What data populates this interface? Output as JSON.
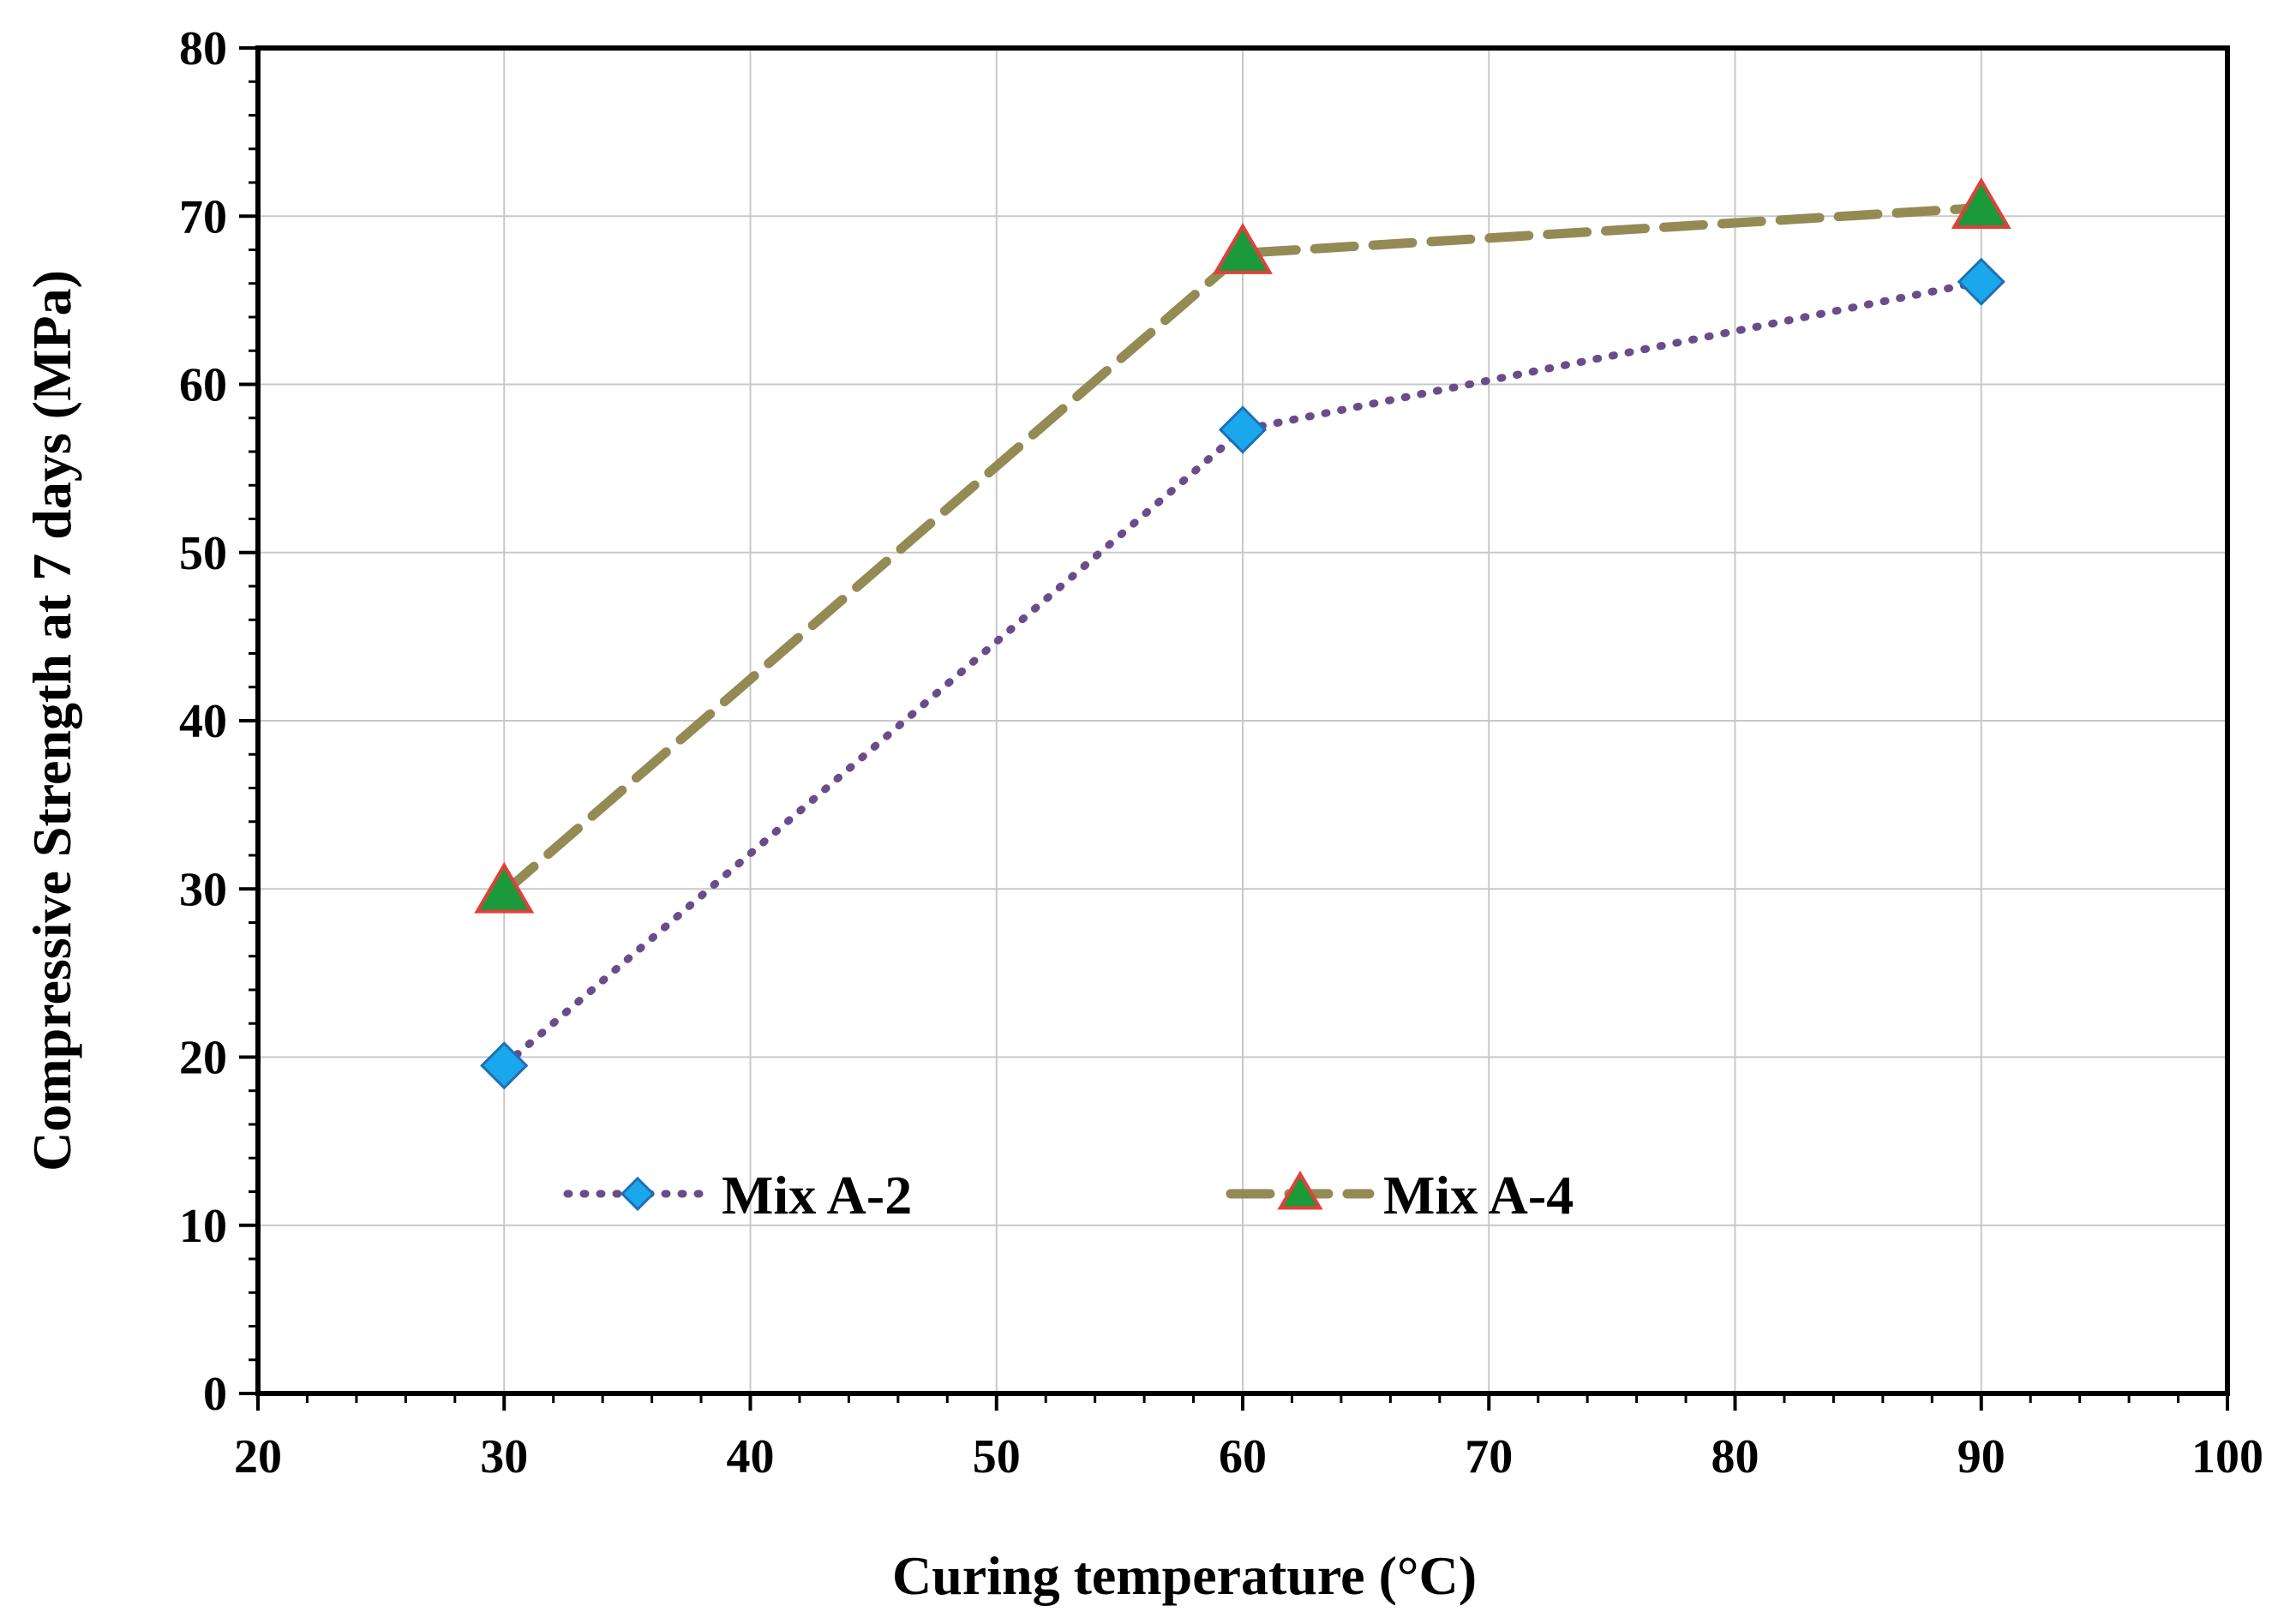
{
  "chart_data": {
    "type": "line",
    "title": "",
    "xlabel": "Curing temperature (°C)",
    "ylabel": "Compressive Strength at 7 days (MPa)",
    "xlim": [
      20,
      100
    ],
    "ylim": [
      0,
      80
    ],
    "x_ticks": [
      20,
      30,
      40,
      50,
      60,
      70,
      80,
      90,
      100
    ],
    "y_ticks": [
      0,
      10,
      20,
      30,
      40,
      50,
      60,
      70,
      80
    ],
    "grid": true,
    "legend_position": "bottom-center-inside",
    "series": [
      {
        "name": "Mix A-2",
        "x": [
          30,
          60,
          90
        ],
        "values": [
          19.5,
          57.3,
          66.1
        ],
        "line_style": "dotted",
        "line_color": "#6b4c8a",
        "marker": "diamond",
        "marker_fill": "#1aa7ec",
        "marker_edge": "#1f6fb5"
      },
      {
        "name": "Mix A-4",
        "x": [
          30,
          60,
          90
        ],
        "values": [
          29.8,
          67.8,
          70.5
        ],
        "line_style": "dashed",
        "line_color": "#948a54",
        "marker": "triangle",
        "marker_fill": "#1a9a3a",
        "marker_edge": "#e0403a"
      }
    ]
  }
}
